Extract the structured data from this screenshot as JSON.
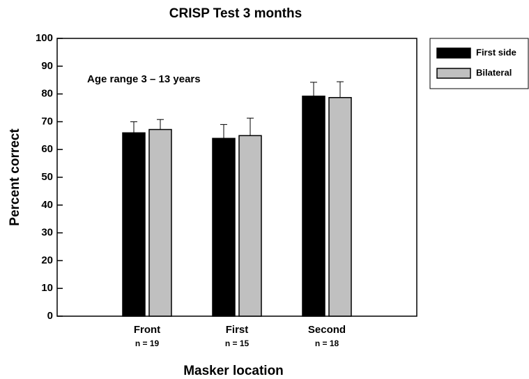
{
  "chart_data": {
    "type": "bar",
    "title": "CRISP Test 3 months",
    "annotation": "Age range 3 – 13 years",
    "x_label": "Masker location",
    "y_label": "Percent correct",
    "categories": [
      "Front",
      "First",
      "Second"
    ],
    "sublabels": [
      "n = 19",
      "n = 15",
      "n = 18"
    ],
    "series": [
      {
        "name": "First side",
        "color": "#000000",
        "values": [
          66,
          64,
          79.2
        ],
        "errors": [
          4,
          5,
          5
        ]
      },
      {
        "name": "Bilateral",
        "color": "#c0c0c0",
        "values": [
          67.2,
          65,
          78.7
        ],
        "errors": [
          3.6,
          6.3,
          5.7
        ]
      }
    ],
    "ylim": [
      0,
      100
    ],
    "yticks": [
      0,
      10,
      20,
      30,
      40,
      50,
      60,
      70,
      80,
      90,
      100
    ],
    "legend": "outside-right-top"
  }
}
